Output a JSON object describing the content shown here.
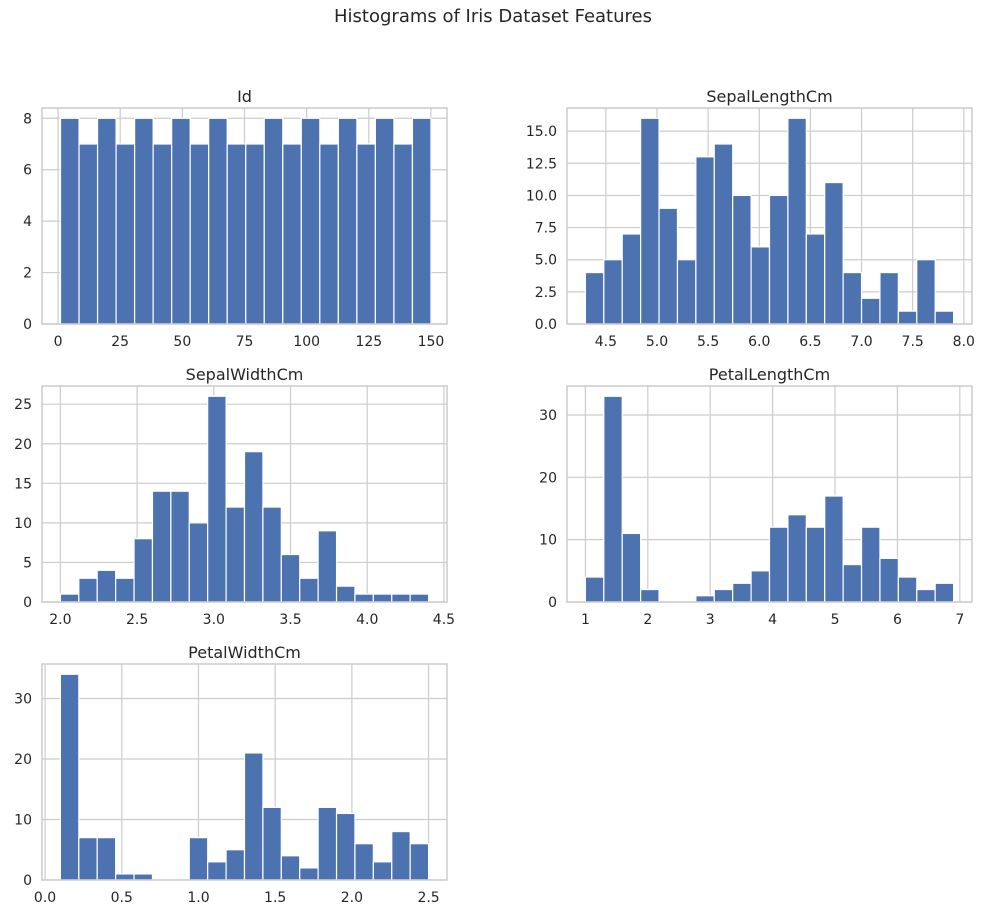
{
  "figure": {
    "title": "Histograms of Iris Dataset Features"
  },
  "colors": {
    "bar": "#4c72b0",
    "grid": "#cccccc",
    "frame": "#cccccc",
    "text": "#262626"
  },
  "chart_data": [
    {
      "type": "bar",
      "title": "Id",
      "xlim": [
        -6.45,
        156.45
      ],
      "ylim": [
        0,
        8.4
      ],
      "xticks": [
        0,
        25,
        50,
        75,
        100,
        125,
        150
      ],
      "xtick_labels": [
        "0",
        "25",
        "50",
        "75",
        "100",
        "125",
        "150"
      ],
      "yticks": [
        0,
        2,
        4,
        6,
        8
      ],
      "ytick_labels": [
        "0",
        "2",
        "4",
        "6",
        "8"
      ],
      "bin_edges": [
        1,
        8.45,
        15.9,
        23.35,
        30.8,
        38.25,
        45.7,
        53.15,
        60.6,
        68.05,
        75.5,
        82.95,
        90.4,
        97.85,
        105.3,
        112.75,
        120.2,
        127.65,
        135.1,
        142.55,
        150
      ],
      "values": [
        8,
        7,
        8,
        7,
        8,
        7,
        8,
        7,
        8,
        7,
        7,
        8,
        7,
        8,
        7,
        8,
        7,
        8,
        7,
        8
      ],
      "grid": true
    },
    {
      "type": "bar",
      "title": "SepalLengthCm",
      "xlim": [
        4.12,
        8.08
      ],
      "ylim": [
        0,
        16.8
      ],
      "xticks": [
        4.5,
        5.0,
        5.5,
        6.0,
        6.5,
        7.0,
        7.5,
        8.0
      ],
      "xtick_labels": [
        "4.5",
        "5.0",
        "5.5",
        "6.0",
        "6.5",
        "7.0",
        "7.5",
        "8.0"
      ],
      "yticks": [
        0,
        2.5,
        5,
        7.5,
        10,
        12.5,
        15
      ],
      "ytick_labels": [
        "0.0",
        "2.5",
        "5.0",
        "7.5",
        "10.0",
        "12.5",
        "15.0"
      ],
      "bin_edges": [
        4.3,
        4.48,
        4.66,
        4.84,
        5.02,
        5.2,
        5.38,
        5.56,
        5.74,
        5.92,
        6.1,
        6.28,
        6.46,
        6.64,
        6.82,
        7.0,
        7.18,
        7.36,
        7.54,
        7.72,
        7.9
      ],
      "values": [
        4,
        5,
        7,
        16,
        9,
        5,
        13,
        14,
        10,
        6,
        10,
        16,
        7,
        11,
        4,
        2,
        4,
        1,
        5,
        1
      ],
      "grid": true
    },
    {
      "type": "bar",
      "title": "SepalWidthCm",
      "xlim": [
        1.88,
        4.52
      ],
      "ylim": [
        0,
        27.3
      ],
      "xticks": [
        2.0,
        2.5,
        3.0,
        3.5,
        4.0,
        4.5
      ],
      "xtick_labels": [
        "2.0",
        "2.5",
        "3.0",
        "3.5",
        "4.0",
        "4.5"
      ],
      "yticks": [
        0,
        5,
        10,
        15,
        20,
        25
      ],
      "ytick_labels": [
        "0",
        "5",
        "10",
        "15",
        "20",
        "25"
      ],
      "bin_edges": [
        2.0,
        2.12,
        2.24,
        2.36,
        2.48,
        2.6,
        2.72,
        2.84,
        2.96,
        3.08,
        3.2,
        3.32,
        3.44,
        3.56,
        3.68,
        3.8,
        3.92,
        4.04,
        4.16,
        4.28,
        4.4
      ],
      "values": [
        1,
        3,
        4,
        3,
        8,
        14,
        14,
        10,
        26,
        12,
        19,
        12,
        6,
        3,
        9,
        2,
        1,
        1,
        1,
        1
      ],
      "grid": true
    },
    {
      "type": "bar",
      "title": "PetalLengthCm",
      "xlim": [
        0.705,
        7.195
      ],
      "ylim": [
        0,
        34.65
      ],
      "xticks": [
        1,
        2,
        3,
        4,
        5,
        6,
        7
      ],
      "xtick_labels": [
        "1",
        "2",
        "3",
        "4",
        "5",
        "6",
        "7"
      ],
      "yticks": [
        0,
        10,
        20,
        30
      ],
      "ytick_labels": [
        "0",
        "10",
        "20",
        "30"
      ],
      "bin_edges": [
        1.0,
        1.295,
        1.59,
        1.885,
        2.18,
        2.475,
        2.77,
        3.065,
        3.36,
        3.655,
        3.95,
        4.245,
        4.54,
        4.835,
        5.13,
        5.425,
        5.72,
        6.015,
        6.31,
        6.605,
        6.9
      ],
      "values": [
        4,
        33,
        11,
        2,
        0,
        0,
        1,
        2,
        3,
        5,
        12,
        14,
        12,
        17,
        6,
        12,
        7,
        4,
        2,
        3
      ],
      "grid": true
    },
    {
      "type": "bar",
      "title": "PetalWidthCm",
      "xlim": [
        -0.02,
        2.62
      ],
      "ylim": [
        0,
        35.7
      ],
      "xticks": [
        0.0,
        0.5,
        1.0,
        1.5,
        2.0,
        2.5
      ],
      "xtick_labels": [
        "0.0",
        "0.5",
        "1.0",
        "1.5",
        "2.0",
        "2.5"
      ],
      "yticks": [
        0,
        10,
        20,
        30
      ],
      "ytick_labels": [
        "0",
        "10",
        "20",
        "30"
      ],
      "bin_edges": [
        0.1,
        0.22,
        0.34,
        0.46,
        0.58,
        0.7,
        0.82,
        0.94,
        1.06,
        1.18,
        1.3,
        1.42,
        1.54,
        1.66,
        1.78,
        1.9,
        2.02,
        2.14,
        2.26,
        2.38,
        2.5
      ],
      "values": [
        34,
        7,
        7,
        1,
        1,
        0,
        0,
        7,
        3,
        5,
        21,
        12,
        4,
        2,
        12,
        11,
        6,
        3,
        8,
        6
      ],
      "grid": true
    }
  ]
}
